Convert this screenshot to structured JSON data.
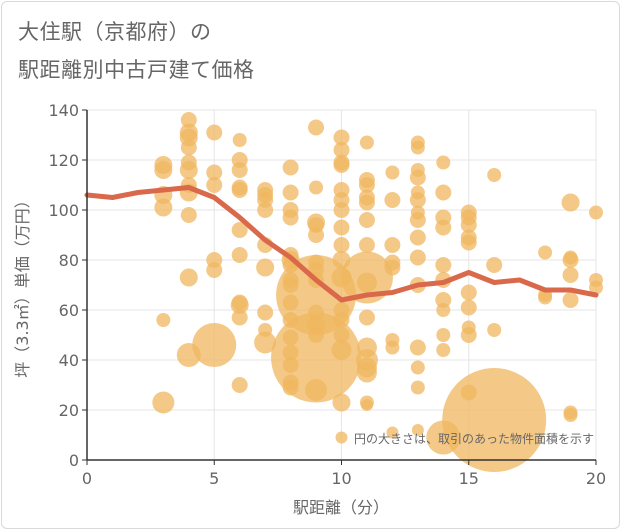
{
  "title": {
    "line1": "大住駅（京都府）の",
    "line2": "駅距離別中古戸建て価格"
  },
  "chart_data": {
    "type": "scatter",
    "xlabel": "駅距離（分）",
    "ylabel": "坪（3.3㎡）単価（万円）",
    "annotation": "円の大きさは、取引のあった物件面積を示す",
    "xlim": [
      0,
      20
    ],
    "ylim": [
      0,
      140
    ],
    "xticks": [
      0,
      5,
      10,
      15,
      20
    ],
    "yticks": [
      0,
      20,
      40,
      60,
      80,
      100,
      120,
      140
    ],
    "grid": true,
    "colors": {
      "bubble": "#f0b760",
      "line": "#d9694a",
      "grid": "#e6e6e6",
      "axis": "#333333"
    },
    "bubbles": [
      {
        "x": 3,
        "y": 118,
        "s": 9
      },
      {
        "x": 3,
        "y": 116,
        "s": 9
      },
      {
        "x": 3,
        "y": 106,
        "s": 9
      },
      {
        "x": 3,
        "y": 101,
        "s": 9
      },
      {
        "x": 3,
        "y": 56,
        "s": 7
      },
      {
        "x": 3,
        "y": 23,
        "s": 11
      },
      {
        "x": 4,
        "y": 136,
        "s": 8
      },
      {
        "x": 4,
        "y": 131,
        "s": 9
      },
      {
        "x": 4,
        "y": 129,
        "s": 9
      },
      {
        "x": 4,
        "y": 125,
        "s": 8
      },
      {
        "x": 4,
        "y": 119,
        "s": 8
      },
      {
        "x": 4,
        "y": 116,
        "s": 9
      },
      {
        "x": 4,
        "y": 110,
        "s": 8
      },
      {
        "x": 4,
        "y": 107,
        "s": 9
      },
      {
        "x": 4,
        "y": 98,
        "s": 8
      },
      {
        "x": 4,
        "y": 73,
        "s": 9
      },
      {
        "x": 4,
        "y": 42,
        "s": 12
      },
      {
        "x": 5,
        "y": 131,
        "s": 8
      },
      {
        "x": 5,
        "y": 115,
        "s": 8
      },
      {
        "x": 5,
        "y": 110,
        "s": 8
      },
      {
        "x": 5,
        "y": 80,
        "s": 8
      },
      {
        "x": 5,
        "y": 76,
        "s": 8
      },
      {
        "x": 5,
        "y": 46,
        "s": 22
      },
      {
        "x": 6,
        "y": 128,
        "s": 7
      },
      {
        "x": 6,
        "y": 120,
        "s": 8
      },
      {
        "x": 6,
        "y": 116,
        "s": 8
      },
      {
        "x": 6,
        "y": 109,
        "s": 8
      },
      {
        "x": 6,
        "y": 108,
        "s": 8
      },
      {
        "x": 6,
        "y": 92,
        "s": 8
      },
      {
        "x": 6,
        "y": 82,
        "s": 8
      },
      {
        "x": 6,
        "y": 63,
        "s": 8
      },
      {
        "x": 6,
        "y": 62,
        "s": 9
      },
      {
        "x": 6,
        "y": 57,
        "s": 8
      },
      {
        "x": 6,
        "y": 30,
        "s": 8
      },
      {
        "x": 7,
        "y": 108,
        "s": 8
      },
      {
        "x": 7,
        "y": 106,
        "s": 8
      },
      {
        "x": 7,
        "y": 104,
        "s": 8
      },
      {
        "x": 7,
        "y": 100,
        "s": 8
      },
      {
        "x": 7,
        "y": 86,
        "s": 8
      },
      {
        "x": 7,
        "y": 77,
        "s": 9
      },
      {
        "x": 7,
        "y": 59,
        "s": 8
      },
      {
        "x": 7,
        "y": 52,
        "s": 7
      },
      {
        "x": 7,
        "y": 47,
        "s": 11
      },
      {
        "x": 8,
        "y": 117,
        "s": 8
      },
      {
        "x": 8,
        "y": 107,
        "s": 8
      },
      {
        "x": 8,
        "y": 100,
        "s": 8
      },
      {
        "x": 8,
        "y": 97,
        "s": 8
      },
      {
        "x": 8,
        "y": 82,
        "s": 8
      },
      {
        "x": 8,
        "y": 80,
        "s": 9
      },
      {
        "x": 8,
        "y": 78,
        "s": 8
      },
      {
        "x": 8,
        "y": 72,
        "s": 8
      },
      {
        "x": 8,
        "y": 70,
        "s": 8
      },
      {
        "x": 8,
        "y": 63,
        "s": 8
      },
      {
        "x": 8,
        "y": 56,
        "s": 8
      },
      {
        "x": 8,
        "y": 49,
        "s": 8
      },
      {
        "x": 8,
        "y": 43,
        "s": 8
      },
      {
        "x": 8,
        "y": 38,
        "s": 8
      },
      {
        "x": 8,
        "y": 31,
        "s": 8
      },
      {
        "x": 8,
        "y": 29,
        "s": 8
      },
      {
        "x": 9,
        "y": 133,
        "s": 8
      },
      {
        "x": 9,
        "y": 109,
        "s": 7
      },
      {
        "x": 9,
        "y": 95,
        "s": 9
      },
      {
        "x": 9,
        "y": 94,
        "s": 8
      },
      {
        "x": 9,
        "y": 90,
        "s": 8
      },
      {
        "x": 9,
        "y": 79,
        "s": 8
      },
      {
        "x": 9,
        "y": 76,
        "s": 8
      },
      {
        "x": 9,
        "y": 72,
        "s": 8
      },
      {
        "x": 9,
        "y": 66,
        "s": 40
      },
      {
        "x": 9,
        "y": 59,
        "s": 8
      },
      {
        "x": 9,
        "y": 54,
        "s": 9
      },
      {
        "x": 9,
        "y": 50,
        "s": 8
      },
      {
        "x": 9,
        "y": 41,
        "s": 45
      },
      {
        "x": 9,
        "y": 28,
        "s": 11
      },
      {
        "x": 10,
        "y": 129,
        "s": 8
      },
      {
        "x": 10,
        "y": 124,
        "s": 8
      },
      {
        "x": 10,
        "y": 119,
        "s": 8
      },
      {
        "x": 10,
        "y": 118,
        "s": 8
      },
      {
        "x": 10,
        "y": 108,
        "s": 8
      },
      {
        "x": 10,
        "y": 104,
        "s": 8
      },
      {
        "x": 10,
        "y": 100,
        "s": 8
      },
      {
        "x": 10,
        "y": 93,
        "s": 8
      },
      {
        "x": 10,
        "y": 86,
        "s": 8
      },
      {
        "x": 10,
        "y": 80,
        "s": 9
      },
      {
        "x": 10,
        "y": 73,
        "s": 10
      },
      {
        "x": 10,
        "y": 60,
        "s": 8
      },
      {
        "x": 10,
        "y": 56,
        "s": 8
      },
      {
        "x": 10,
        "y": 50,
        "s": 8
      },
      {
        "x": 10,
        "y": 44,
        "s": 10
      },
      {
        "x": 10,
        "y": 23,
        "s": 9
      },
      {
        "x": 10,
        "y": 9,
        "s": 6
      },
      {
        "x": 11,
        "y": 127,
        "s": 7
      },
      {
        "x": 11,
        "y": 112,
        "s": 8
      },
      {
        "x": 11,
        "y": 110,
        "s": 8
      },
      {
        "x": 11,
        "y": 105,
        "s": 8
      },
      {
        "x": 11,
        "y": 103,
        "s": 8
      },
      {
        "x": 11,
        "y": 96,
        "s": 8
      },
      {
        "x": 11,
        "y": 86,
        "s": 8
      },
      {
        "x": 11,
        "y": 73,
        "s": 26
      },
      {
        "x": 11,
        "y": 71,
        "s": 10
      },
      {
        "x": 11,
        "y": 57,
        "s": 8
      },
      {
        "x": 11,
        "y": 45,
        "s": 10
      },
      {
        "x": 11,
        "y": 40,
        "s": 11
      },
      {
        "x": 11,
        "y": 37,
        "s": 10
      },
      {
        "x": 11,
        "y": 35,
        "s": 10
      },
      {
        "x": 11,
        "y": 23,
        "s": 7
      },
      {
        "x": 11,
        "y": 22,
        "s": 6
      },
      {
        "x": 12,
        "y": 115,
        "s": 7
      },
      {
        "x": 12,
        "y": 104,
        "s": 8
      },
      {
        "x": 12,
        "y": 86,
        "s": 8
      },
      {
        "x": 12,
        "y": 79,
        "s": 8
      },
      {
        "x": 12,
        "y": 77,
        "s": 8
      },
      {
        "x": 12,
        "y": 48,
        "s": 7
      },
      {
        "x": 12,
        "y": 45,
        "s": 7
      },
      {
        "x": 12,
        "y": 11,
        "s": 6
      },
      {
        "x": 13,
        "y": 127,
        "s": 7
      },
      {
        "x": 13,
        "y": 125,
        "s": 7
      },
      {
        "x": 13,
        "y": 116,
        "s": 7
      },
      {
        "x": 13,
        "y": 113,
        "s": 8
      },
      {
        "x": 13,
        "y": 107,
        "s": 7
      },
      {
        "x": 13,
        "y": 104,
        "s": 8
      },
      {
        "x": 13,
        "y": 99,
        "s": 7
      },
      {
        "x": 13,
        "y": 96,
        "s": 8
      },
      {
        "x": 13,
        "y": 89,
        "s": 8
      },
      {
        "x": 13,
        "y": 81,
        "s": 8
      },
      {
        "x": 13,
        "y": 70,
        "s": 8
      },
      {
        "x": 13,
        "y": 45,
        "s": 8
      },
      {
        "x": 13,
        "y": 37,
        "s": 7
      },
      {
        "x": 13,
        "y": 29,
        "s": 7
      },
      {
        "x": 13,
        "y": 12,
        "s": 6
      },
      {
        "x": 14,
        "y": 119,
        "s": 7
      },
      {
        "x": 14,
        "y": 107,
        "s": 8
      },
      {
        "x": 14,
        "y": 97,
        "s": 8
      },
      {
        "x": 14,
        "y": 93,
        "s": 8
      },
      {
        "x": 14,
        "y": 78,
        "s": 8
      },
      {
        "x": 14,
        "y": 72,
        "s": 8
      },
      {
        "x": 14,
        "y": 64,
        "s": 8
      },
      {
        "x": 14,
        "y": 60,
        "s": 7
      },
      {
        "x": 14,
        "y": 50,
        "s": 7
      },
      {
        "x": 14,
        "y": 44,
        "s": 7
      },
      {
        "x": 14,
        "y": 9,
        "s": 17
      },
      {
        "x": 15,
        "y": 99,
        "s": 8
      },
      {
        "x": 15,
        "y": 97,
        "s": 8
      },
      {
        "x": 15,
        "y": 94,
        "s": 8
      },
      {
        "x": 15,
        "y": 89,
        "s": 8
      },
      {
        "x": 15,
        "y": 87,
        "s": 8
      },
      {
        "x": 15,
        "y": 67,
        "s": 8
      },
      {
        "x": 15,
        "y": 61,
        "s": 8
      },
      {
        "x": 15,
        "y": 53,
        "s": 7
      },
      {
        "x": 15,
        "y": 50,
        "s": 8
      },
      {
        "x": 15,
        "y": 27,
        "s": 8
      },
      {
        "x": 16,
        "y": 114,
        "s": 7
      },
      {
        "x": 16,
        "y": 78,
        "s": 8
      },
      {
        "x": 16,
        "y": 52,
        "s": 7
      },
      {
        "x": 16,
        "y": 16,
        "s": 52
      },
      {
        "x": 18,
        "y": 83,
        "s": 7
      },
      {
        "x": 18,
        "y": 66,
        "s": 7
      },
      {
        "x": 18,
        "y": 65,
        "s": 7
      },
      {
        "x": 19,
        "y": 103,
        "s": 9
      },
      {
        "x": 19,
        "y": 81,
        "s": 7
      },
      {
        "x": 19,
        "y": 80,
        "s": 8
      },
      {
        "x": 19,
        "y": 74,
        "s": 8
      },
      {
        "x": 19,
        "y": 64,
        "s": 8
      },
      {
        "x": 19,
        "y": 19,
        "s": 7
      },
      {
        "x": 19,
        "y": 18,
        "s": 7
      },
      {
        "x": 20,
        "y": 99,
        "s": 7
      },
      {
        "x": 20,
        "y": 72,
        "s": 7
      },
      {
        "x": 20,
        "y": 69,
        "s": 7
      }
    ],
    "line": {
      "x": [
        0,
        1,
        2,
        3,
        4,
        5,
        6,
        7,
        8,
        9,
        10,
        11,
        12,
        13,
        14,
        15,
        16,
        17,
        18,
        19,
        20
      ],
      "y": [
        106,
        105,
        107,
        108,
        109,
        105,
        97,
        88,
        81,
        72,
        64,
        66,
        67,
        70,
        71,
        75,
        71,
        72,
        68,
        68,
        66
      ]
    }
  }
}
